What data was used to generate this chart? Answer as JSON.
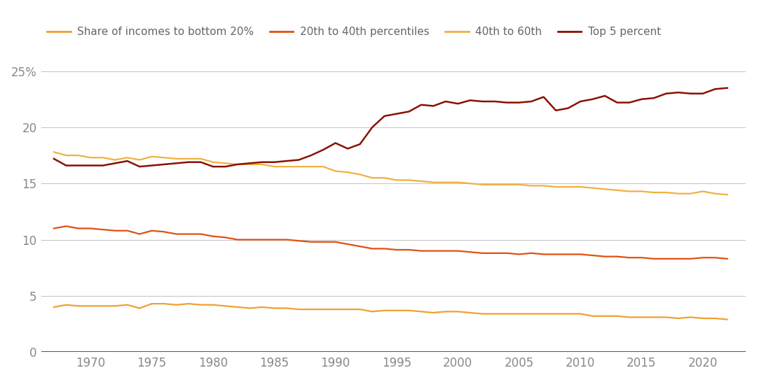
{
  "legend_labels": [
    "Share of incomes to bottom 20%",
    "20th to 40th percentiles",
    "40th to 60th",
    "Top 5 percent"
  ],
  "line_colors": [
    "#F0A030",
    "#E05010",
    "#F0B040",
    "#8B1000"
  ],
  "background_color": "#FFFFFF",
  "grid_color": "#C8C8C8",
  "ylim": [
    0,
    27
  ],
  "yticks": [
    0,
    5,
    10,
    15,
    20,
    25
  ],
  "ytick_labels": [
    "0",
    "5",
    "10",
    "15",
    "20",
    "25%"
  ],
  "xticks": [
    1970,
    1975,
    1980,
    1985,
    1990,
    1995,
    2000,
    2005,
    2010,
    2015,
    2020
  ],
  "tick_fontsize": 12,
  "legend_fontsize": 11,
  "years": [
    1967,
    1968,
    1969,
    1970,
    1971,
    1972,
    1973,
    1974,
    1975,
    1976,
    1977,
    1978,
    1979,
    1980,
    1981,
    1982,
    1983,
    1984,
    1985,
    1986,
    1987,
    1988,
    1989,
    1990,
    1991,
    1992,
    1993,
    1994,
    1995,
    1996,
    1997,
    1998,
    1999,
    2000,
    2001,
    2002,
    2003,
    2004,
    2005,
    2006,
    2007,
    2008,
    2009,
    2010,
    2011,
    2012,
    2013,
    2014,
    2015,
    2016,
    2017,
    2018,
    2019,
    2020,
    2021,
    2022
  ],
  "bottom20": [
    4.0,
    4.2,
    4.1,
    4.1,
    4.1,
    4.1,
    4.2,
    3.9,
    4.3,
    4.3,
    4.2,
    4.3,
    4.2,
    4.2,
    4.1,
    4.0,
    3.9,
    4.0,
    3.9,
    3.9,
    3.8,
    3.8,
    3.8,
    3.8,
    3.8,
    3.8,
    3.6,
    3.7,
    3.7,
    3.7,
    3.6,
    3.5,
    3.6,
    3.6,
    3.5,
    3.4,
    3.4,
    3.4,
    3.4,
    3.4,
    3.4,
    3.4,
    3.4,
    3.4,
    3.2,
    3.2,
    3.2,
    3.1,
    3.1,
    3.1,
    3.1,
    3.0,
    3.1,
    3.0,
    3.0,
    2.9
  ],
  "p20_40": [
    11.0,
    11.2,
    11.0,
    11.0,
    10.9,
    10.8,
    10.8,
    10.5,
    10.8,
    10.7,
    10.5,
    10.5,
    10.5,
    10.3,
    10.2,
    10.0,
    10.0,
    10.0,
    10.0,
    10.0,
    9.9,
    9.8,
    9.8,
    9.8,
    9.6,
    9.4,
    9.2,
    9.2,
    9.1,
    9.1,
    9.0,
    9.0,
    9.0,
    9.0,
    8.9,
    8.8,
    8.8,
    8.8,
    8.7,
    8.8,
    8.7,
    8.7,
    8.7,
    8.7,
    8.6,
    8.5,
    8.5,
    8.4,
    8.4,
    8.3,
    8.3,
    8.3,
    8.3,
    8.4,
    8.4,
    8.3
  ],
  "p40_60": [
    17.8,
    17.5,
    17.5,
    17.3,
    17.3,
    17.1,
    17.3,
    17.1,
    17.4,
    17.3,
    17.2,
    17.2,
    17.2,
    16.9,
    16.8,
    16.7,
    16.7,
    16.7,
    16.5,
    16.5,
    16.5,
    16.5,
    16.5,
    16.1,
    16.0,
    15.8,
    15.5,
    15.5,
    15.3,
    15.3,
    15.2,
    15.1,
    15.1,
    15.1,
    15.0,
    14.9,
    14.9,
    14.9,
    14.9,
    14.8,
    14.8,
    14.7,
    14.7,
    14.7,
    14.6,
    14.5,
    14.4,
    14.3,
    14.3,
    14.2,
    14.2,
    14.1,
    14.1,
    14.3,
    14.1,
    14.0
  ],
  "top5": [
    17.2,
    16.6,
    16.6,
    16.6,
    16.6,
    16.8,
    17.0,
    16.5,
    16.6,
    16.7,
    16.8,
    16.9,
    16.9,
    16.5,
    16.5,
    16.7,
    16.8,
    16.9,
    16.9,
    17.0,
    17.1,
    17.5,
    18.0,
    18.6,
    18.1,
    18.5,
    20.0,
    21.0,
    21.2,
    21.4,
    22.0,
    21.9,
    22.3,
    22.1,
    22.4,
    22.3,
    22.3,
    22.2,
    22.2,
    22.3,
    22.7,
    21.5,
    21.7,
    22.3,
    22.5,
    22.8,
    22.2,
    22.2,
    22.5,
    22.6,
    23.0,
    23.1,
    23.0,
    23.0,
    23.4,
    23.5
  ]
}
